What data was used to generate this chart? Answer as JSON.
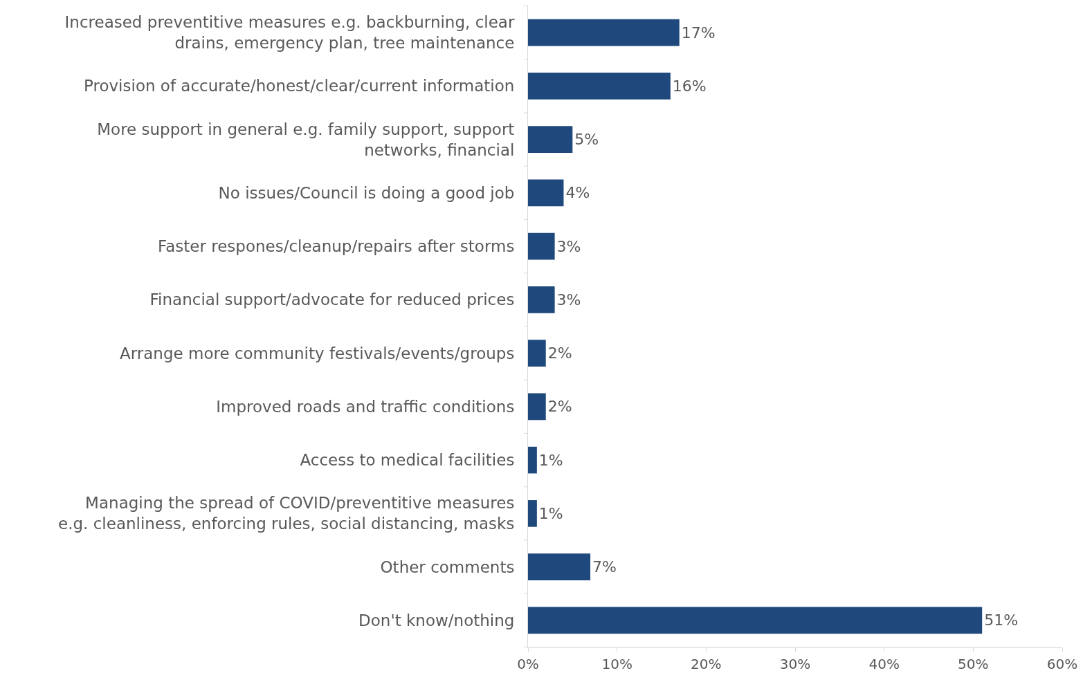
{
  "chart_data": {
    "type": "bar",
    "orientation": "horizontal",
    "categories": [
      "Increased preventitive measures e.g. backburning, clear\ndrains, emergency plan, tree maintenance",
      "Provision of accurate/honest/clear/current information",
      "More support in general e.g. family support, support\nnetworks, financial",
      "No issues/Council is doing a good job",
      "Faster respones/cleanup/repairs after storms",
      "Financial support/advocate for reduced prices",
      "Arrange more community festivals/events/groups",
      "Improved roads and traffic conditions",
      "Access to medical facilities",
      "Managing the spread of COVID/preventitive measures\ne.g. cleanliness, enforcing rules, social distancing, masks",
      "Other comments",
      "Don't know/nothing"
    ],
    "values": [
      17,
      16,
      5,
      4,
      3,
      3,
      2,
      2,
      1,
      1,
      7,
      51
    ],
    "value_labels": [
      "17%",
      "16%",
      "5%",
      "4%",
      "3%",
      "3%",
      "2%",
      "2%",
      "1%",
      "1%",
      "7%",
      "51%"
    ],
    "color": "#1f497d",
    "xlim": [
      0,
      60
    ],
    "xticks": [
      {
        "value": 0,
        "label": "0%"
      },
      {
        "value": 10,
        "label": "10%"
      },
      {
        "value": 20,
        "label": "20%"
      },
      {
        "value": 30,
        "label": "30%"
      },
      {
        "value": 40,
        "label": "40%"
      },
      {
        "value": 50,
        "label": "50%"
      },
      {
        "value": 60,
        "label": "60%"
      }
    ],
    "legend": false
  }
}
